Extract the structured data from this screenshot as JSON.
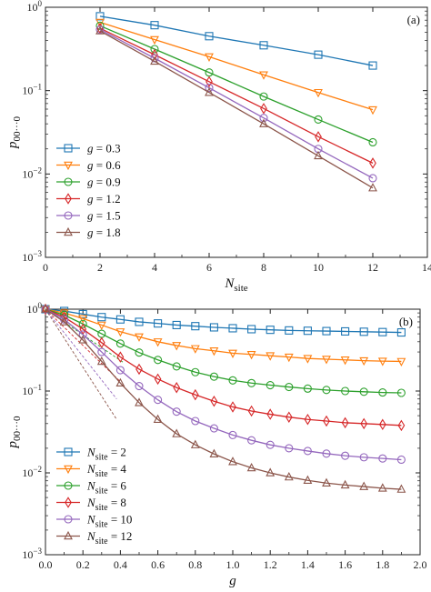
{
  "chart_data": [
    {
      "type": "line",
      "panel_label": "(a)",
      "xlabel": "N_site",
      "ylabel": "p_{00···0}",
      "xlim": [
        0,
        14
      ],
      "ylim": [
        0.001,
        1
      ],
      "yscale": "log",
      "xticks": [
        "0",
        "2",
        "4",
        "6",
        "8",
        "10",
        "12",
        "14"
      ],
      "yticks": [
        "10^-3",
        "10^-2",
        "10^-1",
        "10^0"
      ],
      "legend_position": "lower-left",
      "legend_var": "g",
      "x": [
        2,
        4,
        6,
        8,
        10,
        12
      ],
      "series": [
        {
          "label": "0.3",
          "color": "#1f77b4",
          "marker": "square",
          "values": [
            0.78,
            0.61,
            0.45,
            0.35,
            0.27,
            0.2
          ]
        },
        {
          "label": "0.6",
          "color": "#ff7f0e",
          "marker": "triangle-down",
          "values": [
            0.66,
            0.41,
            0.255,
            0.155,
            0.095,
            0.059
          ]
        },
        {
          "label": "0.9",
          "color": "#2ca02c",
          "marker": "circle",
          "values": [
            0.6,
            0.315,
            0.165,
            0.085,
            0.045,
            0.024
          ]
        },
        {
          "label": "1.2",
          "color": "#d62728",
          "marker": "diamond",
          "values": [
            0.56,
            0.27,
            0.128,
            0.061,
            0.028,
            0.0135
          ]
        },
        {
          "label": "1.5",
          "color": "#9467bd",
          "marker": "circle",
          "values": [
            0.54,
            0.245,
            0.108,
            0.047,
            0.02,
            0.0089
          ]
        },
        {
          "label": "1.8",
          "color": "#8c564b",
          "marker": "triangle-up",
          "values": [
            0.52,
            0.225,
            0.095,
            0.04,
            0.0165,
            0.0068
          ]
        }
      ]
    },
    {
      "type": "line",
      "panel_label": "(b)",
      "xlabel": "g",
      "ylabel": "p_{00···0}",
      "xlim": [
        0,
        2
      ],
      "ylim": [
        0.001,
        1
      ],
      "yscale": "log",
      "xticks": [
        "0.0",
        "0.2",
        "0.4",
        "0.6",
        "0.8",
        "1.0",
        "1.2",
        "1.4",
        "1.6",
        "1.8",
        "2.0"
      ],
      "yticks": [
        "10^-3",
        "10^-2",
        "10^-1",
        "10^0"
      ],
      "legend_position": "lower-left",
      "legend_var": "N_site",
      "x": [
        0.0,
        0.1,
        0.2,
        0.3,
        0.4,
        0.5,
        0.6,
        0.7,
        0.8,
        0.9,
        1.0,
        1.1,
        1.2,
        1.3,
        1.4,
        1.5,
        1.6,
        1.7,
        1.8,
        1.9
      ],
      "series": [
        {
          "label": "2",
          "color": "#1f77b4",
          "marker": "square",
          "values": [
            1.0,
            0.95,
            0.87,
            0.8,
            0.75,
            0.7,
            0.67,
            0.64,
            0.62,
            0.6,
            0.585,
            0.57,
            0.56,
            0.55,
            0.545,
            0.54,
            0.535,
            0.53,
            0.525,
            0.52
          ]
        },
        {
          "label": "4",
          "color": "#ff7f0e",
          "marker": "triangle-down",
          "values": [
            1.0,
            0.9,
            0.77,
            0.64,
            0.53,
            0.46,
            0.4,
            0.36,
            0.33,
            0.31,
            0.29,
            0.28,
            0.27,
            0.26,
            0.25,
            0.245,
            0.24,
            0.235,
            0.232,
            0.23
          ]
        },
        {
          "label": "6",
          "color": "#2ca02c",
          "marker": "circle",
          "values": [
            1.0,
            0.85,
            0.66,
            0.5,
            0.38,
            0.295,
            0.24,
            0.2,
            0.17,
            0.15,
            0.135,
            0.125,
            0.118,
            0.112,
            0.107,
            0.103,
            0.1,
            0.098,
            0.096,
            0.095
          ]
        },
        {
          "label": "8",
          "color": "#d62728",
          "marker": "diamond",
          "values": [
            1.0,
            0.8,
            0.57,
            0.39,
            0.26,
            0.185,
            0.14,
            0.11,
            0.09,
            0.075,
            0.064,
            0.057,
            0.052,
            0.048,
            0.045,
            0.043,
            0.041,
            0.04,
            0.039,
            0.038
          ]
        },
        {
          "label": "10",
          "color": "#9467bd",
          "marker": "circle",
          "values": [
            1.0,
            0.75,
            0.49,
            0.3,
            0.18,
            0.115,
            0.078,
            0.056,
            0.043,
            0.035,
            0.029,
            0.025,
            0.022,
            0.02,
            0.0185,
            0.0172,
            0.0162,
            0.0155,
            0.015,
            0.0145
          ]
        },
        {
          "label": "12",
          "color": "#8c564b",
          "marker": "triangle-up",
          "values": [
            1.0,
            0.7,
            0.42,
            0.23,
            0.125,
            0.072,
            0.045,
            0.03,
            0.022,
            0.017,
            0.0137,
            0.0115,
            0.01,
            0.0089,
            0.0081,
            0.0075,
            0.0071,
            0.0068,
            0.0065,
            0.0063
          ]
        }
      ],
      "dashed_lines": [
        {
          "color": "#2ca02c",
          "x": [
            0.0,
            0.42
          ],
          "values": [
            1.0,
            0.22
          ]
        },
        {
          "color": "#d62728",
          "x": [
            0.0,
            0.4
          ],
          "values": [
            1.0,
            0.13
          ]
        },
        {
          "color": "#9467bd",
          "x": [
            0.0,
            0.38
          ],
          "values": [
            1.0,
            0.08
          ]
        },
        {
          "color": "#8c564b",
          "x": [
            0.0,
            0.38
          ],
          "values": [
            1.0,
            0.045
          ]
        }
      ]
    }
  ]
}
